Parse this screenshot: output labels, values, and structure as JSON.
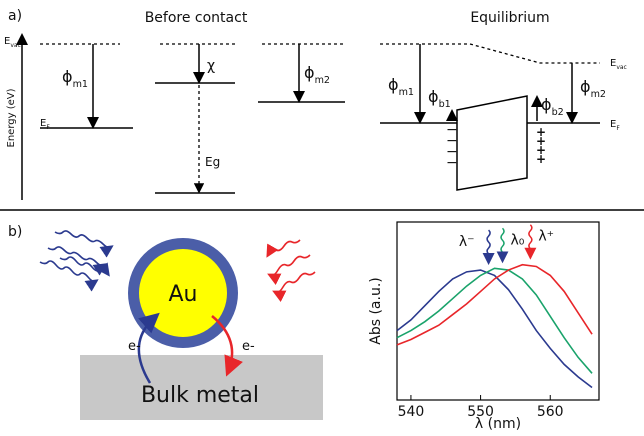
{
  "panel_a": {
    "label": "a)",
    "before_title": "Before contact",
    "after_title": "Equilibrium",
    "energy_axis": "Energy (eV)",
    "evac": {
      "main": "E",
      "sub": "vac"
    },
    "ef": {
      "main": "E",
      "sub": "F"
    },
    "phi_m1": {
      "main": "ϕ",
      "sub": "m1"
    },
    "phi_m2": {
      "main": "ϕ",
      "sub": "m2"
    },
    "phi_b1": {
      "main": "ϕ",
      "sub": "b1"
    },
    "phi_b2": {
      "main": "ϕ",
      "sub": "b2"
    },
    "chi": "χ",
    "eg": "Eg",
    "minus": "−",
    "plus": "+"
  },
  "panel_b": {
    "label": "b)",
    "core": "Au",
    "electron": "e-",
    "substrate": "Bulk metal"
  },
  "chart_data": {
    "type": "line",
    "y_label": "Abs (a.u.)",
    "x_label": "λ (nm)",
    "x": [
      538,
      540,
      542,
      544,
      546,
      548,
      550,
      552,
      554,
      556,
      558,
      560,
      562,
      564,
      566
    ],
    "series": [
      {
        "name": "λ⁻",
        "color": "#2b3a8f",
        "values": [
          0.39,
          0.45,
          0.53,
          0.61,
          0.68,
          0.72,
          0.73,
          0.7,
          0.62,
          0.51,
          0.39,
          0.29,
          0.2,
          0.13,
          0.07
        ]
      },
      {
        "name": "λ₀",
        "color": "#1aa36b",
        "values": [
          0.35,
          0.39,
          0.44,
          0.5,
          0.57,
          0.64,
          0.7,
          0.74,
          0.73,
          0.68,
          0.59,
          0.47,
          0.35,
          0.24,
          0.15
        ]
      },
      {
        "name": "λ⁺",
        "color": "#e8262a",
        "values": [
          0.31,
          0.34,
          0.38,
          0.42,
          0.48,
          0.54,
          0.61,
          0.68,
          0.73,
          0.76,
          0.75,
          0.7,
          0.61,
          0.49,
          0.37
        ]
      }
    ],
    "xlim": [
      538,
      567
    ],
    "xticks": [
      540,
      550,
      560
    ],
    "ylim": [
      0,
      1
    ]
  }
}
